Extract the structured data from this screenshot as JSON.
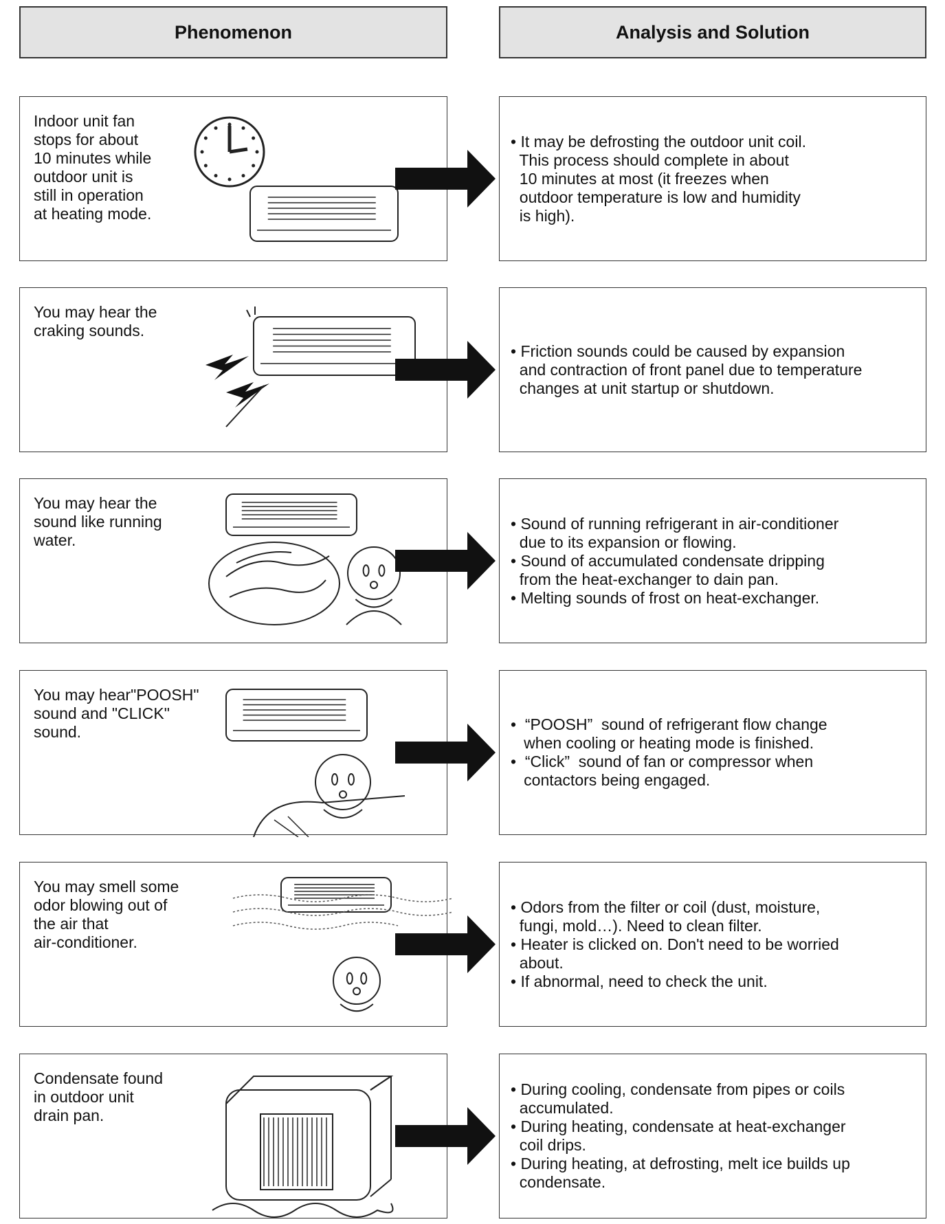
{
  "header": {
    "left": "Phenomenon",
    "right": "Analysis and Solution"
  },
  "rows": [
    {
      "phenomenon": [
        "Indoor unit fan",
        "stops for about",
        "10 minutes while",
        "outdoor unit is",
        "still in operation",
        "at heating mode."
      ],
      "solution": [
        "• It may be defrosting the outdoor unit coil.",
        "  This process should complete in about",
        "  10 minutes at most (it freezes when",
        "  outdoor temperature is low and humidity",
        "  is high)."
      ]
    },
    {
      "phenomenon": [
        "You may hear the",
        "craking sounds."
      ],
      "solution": [
        "• Friction sounds could be caused by expansion",
        "  and contraction of front panel due to temperature",
        "  changes at unit startup or shutdown."
      ]
    },
    {
      "phenomenon": [
        "You may hear the",
        "sound like running",
        "water."
      ],
      "solution": [
        "• Sound of running refrigerant in air-conditioner",
        "  due to its expansion or flowing.",
        "• Sound of accumulated condensate dripping",
        "  from the heat-exchanger to dain pan.",
        "• Melting sounds of frost on heat-exchanger."
      ]
    },
    {
      "phenomenon": [
        "You may hear\"POOSH\"",
        "sound and \"CLICK\"",
        "sound."
      ],
      "solution": [
        "•  “POOSH”  sound of refrigerant flow change",
        "   when cooling or heating mode is finished.",
        "•  “Click”  sound of fan or compressor when",
        "   contactors being engaged."
      ]
    },
    {
      "phenomenon": [
        "You may smell some",
        "odor blowing out of",
        "the air that",
        "air-conditioner."
      ],
      "solution": [
        "• Odors from the filter or coil (dust, moisture,",
        "  fungi, mold…). Need to clean filter.",
        "• Heater is clicked on. Don't need to be worried",
        "  about.",
        "• If abnormal, need to check the unit."
      ]
    },
    {
      "phenomenon": [
        "Condensate found",
        "in outdoor unit",
        "drain pan."
      ],
      "solution": [
        "• During cooling, condensate from pipes or coils",
        "  accumulated.",
        "• During heating, condensate at heat-exchanger",
        "  coil drips.",
        "• During heating, at defrosting, melt ice builds up",
        "  condensate."
      ]
    }
  ]
}
